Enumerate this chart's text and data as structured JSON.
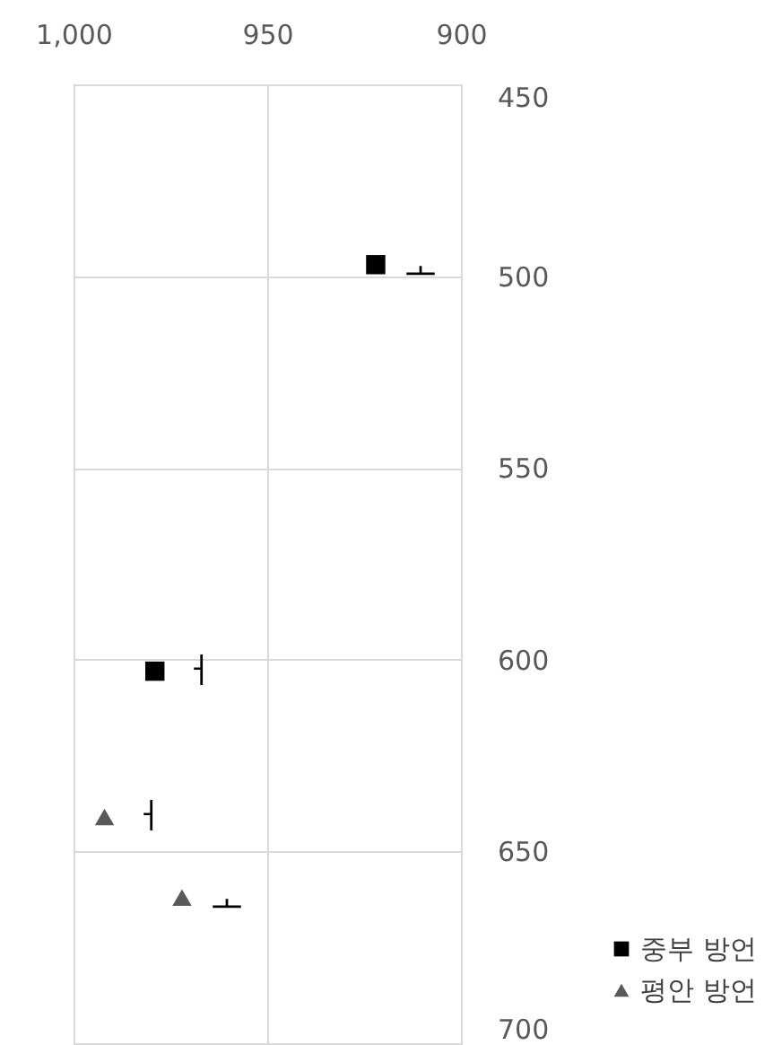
{
  "chart_data": {
    "type": "scatter",
    "xlim": [
      1000,
      900
    ],
    "ylim": [
      700,
      450
    ],
    "xticks": [
      {
        "value": 1000,
        "label": "1,000"
      },
      950,
      900
    ],
    "yticks": [
      450,
      500,
      550,
      600,
      650,
      700
    ],
    "grid": true,
    "legend": "bottom right",
    "series": [
      {
        "name": "중부 방언",
        "color": "#000000",
        "marker": "square",
        "x": [
          922,
          979
        ],
        "values": [
          497,
          603
        ]
      },
      {
        "name": "평안 방언",
        "color": "#595959",
        "marker": "triangle",
        "x": [
          992,
          972
        ],
        "values": [
          641,
          662
        ]
      }
    ],
    "annotations": [
      {
        "text": "ㅗ",
        "x": 922,
        "y": 497
      },
      {
        "text": "ㅓ",
        "x": 979,
        "y": 603
      },
      {
        "text": "ㅓ",
        "x": 992,
        "y": 641
      },
      {
        "text": "ㅗ",
        "x": 972,
        "y": 662
      }
    ]
  }
}
